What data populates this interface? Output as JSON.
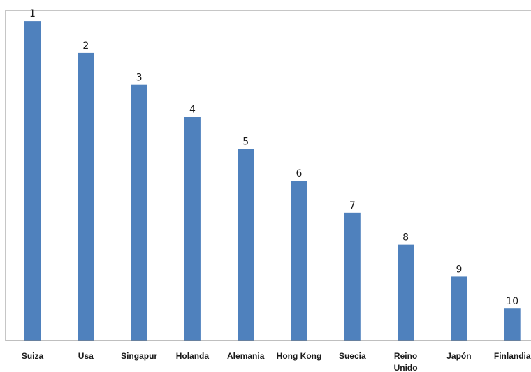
{
  "chart_data": {
    "type": "bar",
    "title": "",
    "xlabel": "",
    "ylabel": "",
    "categories": [
      "Suiza",
      "Usa",
      "Singapur",
      "Holanda",
      "Alemania",
      "Hong Kong",
      "Suecia",
      "Reino Unido",
      "Japón",
      "Finlandia"
    ],
    "category_label_lines": [
      [
        "Suiza"
      ],
      [
        "Usa"
      ],
      [
        "Singapur"
      ],
      [
        "Holanda"
      ],
      [
        "Alemania"
      ],
      [
        "Hong Kong"
      ],
      [
        "Suecia"
      ],
      [
        "Reino",
        "Unido"
      ],
      [
        "Japón"
      ],
      [
        "Finlandia"
      ]
    ],
    "series": [
      {
        "values": [
          10,
          9,
          8,
          7,
          6,
          5,
          4,
          3,
          2,
          1
        ],
        "data_labels": [
          "1",
          "2",
          "3",
          "4",
          "5",
          "6",
          "7",
          "8",
          "9",
          "10"
        ],
        "color": "#4f81bd"
      }
    ],
    "ylim": [
      0,
      10.33
    ],
    "grid": false,
    "legend": "none",
    "y_axis_visible": false
  }
}
